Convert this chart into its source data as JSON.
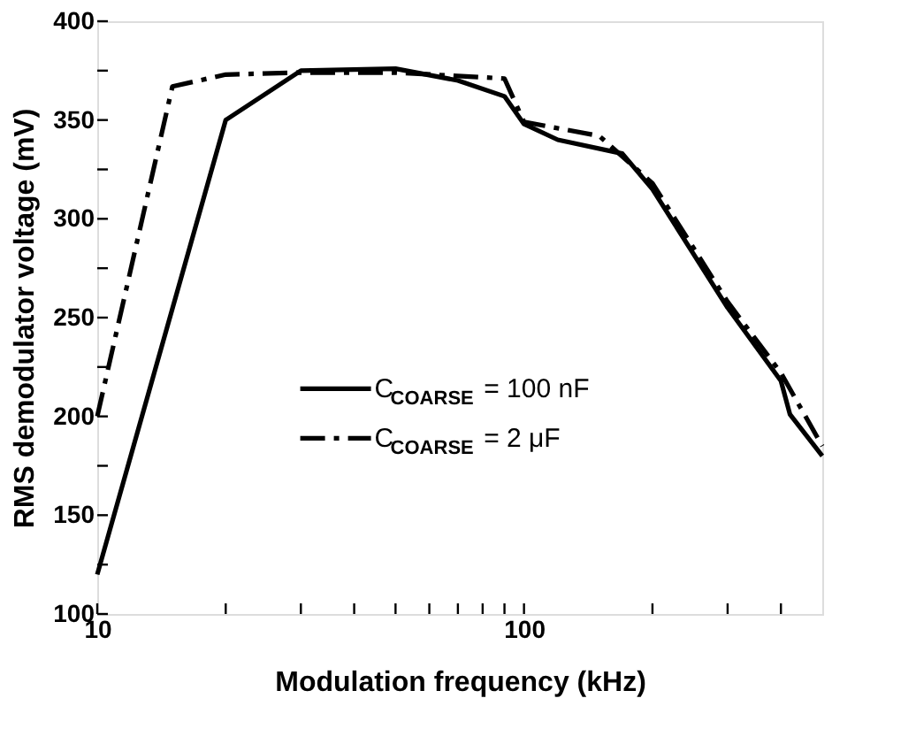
{
  "chart_data": {
    "type": "line",
    "xlabel": "Modulation frequency (kHz)",
    "ylabel": "RMS demodulator voltage (mV)",
    "log": "x",
    "xlim": [
      10,
      500
    ],
    "xticks": [
      10,
      {
        "value": 20,
        "label": null
      },
      {
        "value": 30,
        "label": null
      },
      {
        "value": 40,
        "label": null
      },
      {
        "value": 50,
        "label": null
      },
      {
        "value": 60,
        "label": null
      },
      {
        "value": 70,
        "label": null
      },
      {
        "value": 80,
        "label": null
      },
      {
        "value": 90,
        "label": null
      },
      100,
      {
        "value": 200,
        "label": null
      },
      {
        "value": 300,
        "label": null
      },
      {
        "value": 400,
        "label": null
      }
    ],
    "ylim": [
      100,
      400
    ],
    "yticks": [
      100,
      {
        "value": 125,
        "label": null
      },
      150,
      {
        "value": 175,
        "label": null
      },
      200,
      {
        "value": 225,
        "label": null
      },
      250,
      {
        "value": 275,
        "label": null
      },
      300,
      {
        "value": 325,
        "label": null
      },
      350,
      {
        "value": 375,
        "label": null
      },
      400
    ],
    "grid": false,
    "legend": "center",
    "marker": "none",
    "series": [
      {
        "name": "C$_{COARSE}$= 100 nF",
        "color": "#000000",
        "line_style": "solid",
        "x": [
          10,
          20,
          30,
          50,
          70,
          90,
          100,
          120,
          170,
          200,
          300,
          400,
          420,
          500
        ],
        "values": [
          120,
          350,
          375,
          376,
          370,
          362,
          348,
          340,
          333,
          315,
          255,
          218,
          201,
          180
        ]
      },
      {
        "name": "C$_{COARSE}$ = 2 μF",
        "color": "#000000",
        "line_style": "dashed",
        "x": [
          10,
          15,
          20,
          30,
          50,
          90,
          100,
          150,
          200,
          300,
          400,
          500
        ],
        "values": [
          200,
          367,
          373,
          374,
          374,
          371,
          349,
          342,
          318,
          258,
          222,
          185
        ]
      }
    ]
  }
}
